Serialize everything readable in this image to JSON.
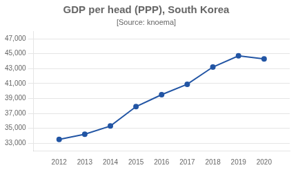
{
  "chart_data": {
    "type": "line",
    "title": "GDP per head (PPP), South Korea",
    "subtitle": "[Source: knoema]",
    "x": [
      2012,
      2013,
      2014,
      2015,
      2016,
      2017,
      2018,
      2019,
      2020
    ],
    "values": [
      33500,
      34200,
      35300,
      37900,
      39500,
      40900,
      43200,
      44700,
      44300
    ],
    "color": "#2255a4",
    "marker": "circle",
    "xlim": [
      2011,
      2021
    ],
    "xticks": [
      2012,
      2013,
      2014,
      2015,
      2016,
      2017,
      2018,
      2019,
      2020
    ],
    "ylim": [
      32000,
      48000
    ],
    "yticks": [
      {
        "value": 33000,
        "label": "33,000"
      },
      {
        "value": 35000,
        "label": "35,000"
      },
      {
        "value": 37000,
        "label": "37,000"
      },
      {
        "value": 39000,
        "label": "39,000"
      },
      {
        "value": 41000,
        "label": "41,000"
      },
      {
        "value": 43000,
        "label": "43,000"
      },
      {
        "value": 45000,
        "label": "45,000"
      },
      {
        "value": 47000,
        "label": "47,000"
      }
    ],
    "grid": "y"
  }
}
